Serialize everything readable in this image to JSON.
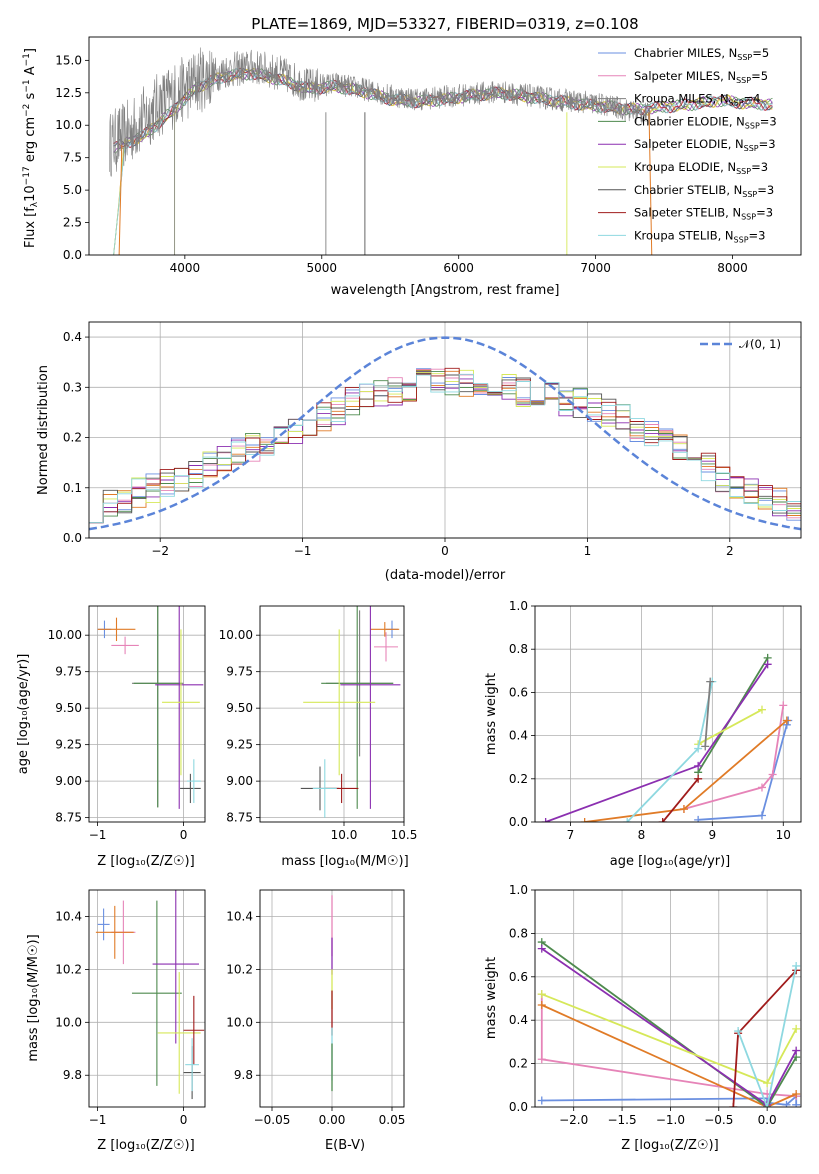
{
  "colors": {
    "Chabrier MILES": "#6a8fe0",
    "Salpeter MILES": "#e684b8",
    "Kroupa MILES": "#7f7f7f",
    "Chabrier ELODIE": "#4e8a4e",
    "Salpeter ELODIE": "#8b2fb0",
    "Kroupa ELODIE": "#d6e859",
    "Chabrier STELIB": "#555555",
    "Salpeter STELIB": "#a01b1b",
    "Kroupa STELIB": "#8ed8e0",
    "orange": "#e07b27",
    "normal_curve": "#5b84d8"
  },
  "chart_data": [
    {
      "id": "spectrum",
      "type": "line",
      "title": "PLATE=1869, MJD=53327, FIBERID=0319, z=0.108",
      "xlabel": "wavelength [Angstrom, rest frame]",
      "ylabel": "Flux [f",
      "ylabel_sub": "λ",
      "ylabel_rest": "10",
      "ylabel_sup1": "−17",
      "ylabel_unit": " erg cm",
      "ylabel_sup2": "−2",
      "ylabel_s": " s",
      "ylabel_sup3": "−1",
      "ylabel_A": " A",
      "ylabel_sup4": "−1",
      "ylabel_end": "]",
      "xlim": [
        3300,
        8500
      ],
      "ylim": [
        0,
        16.8
      ],
      "xticks": [
        4000,
        5000,
        6000,
        7000,
        8000
      ],
      "yticks": [
        0.0,
        2.5,
        5.0,
        7.5,
        10.0,
        12.5,
        15.0
      ],
      "legend": [
        {
          "name": "Chabrier MILES",
          "nssp": "5"
        },
        {
          "name": "Salpeter MILES",
          "nssp": "5"
        },
        {
          "name": "Kroupa MILES",
          "nssp": "4"
        },
        {
          "name": "Chabrier ELODIE",
          "nssp": "3"
        },
        {
          "name": "Salpeter ELODIE",
          "nssp": "3"
        },
        {
          "name": "Kroupa ELODIE",
          "nssp": "3"
        },
        {
          "name": "Chabrier STELIB",
          "nssp": "3"
        },
        {
          "name": "Salpeter STELIB",
          "nssp": "3"
        },
        {
          "name": "Kroupa STELIB",
          "nssp": "3"
        }
      ],
      "legend_label_prefix": ", N",
      "legend_label_sub": "SSP",
      "legend_label_eq": "=",
      "data_envelope": {
        "x": [
          3450,
          3600,
          3800,
          3950,
          4100,
          4300,
          4500,
          4700,
          4900,
          5100,
          5300,
          5500,
          5700,
          5900,
          6100,
          6300,
          6500,
          6700,
          6900,
          7100,
          7300,
          7400
        ],
        "y": [
          8.5,
          9.5,
          11.5,
          12.5,
          13.5,
          14.2,
          14.5,
          14.0,
          13.0,
          13.2,
          12.8,
          12.3,
          12.0,
          12.2,
          12.4,
          12.6,
          12.3,
          12.0,
          11.8,
          11.5,
          11.0,
          10.8
        ]
      },
      "model_envelope": {
        "x": [
          3500,
          3700,
          3900,
          4100,
          4300,
          4500,
          4700,
          4900,
          5100,
          5300,
          5500,
          5700,
          5900,
          6100,
          6300,
          6500,
          6700,
          6900,
          7100,
          7300,
          7500,
          7700,
          7900,
          8100,
          8300
        ],
        "y": [
          8.3,
          9.2,
          11.0,
          13.0,
          13.8,
          14.0,
          13.5,
          12.8,
          13.0,
          12.6,
          12.0,
          11.8,
          12.0,
          12.3,
          12.5,
          12.2,
          11.9,
          11.6,
          11.4,
          11.2,
          11.4,
          11.6,
          11.9,
          11.7,
          11.6
        ]
      }
    },
    {
      "id": "residuals",
      "type": "histogram",
      "xlabel": "(data-model)/error",
      "ylabel": "Normed distribution",
      "xlim": [
        -2.5,
        2.5
      ],
      "ylim": [
        0,
        0.43
      ],
      "xticks": [
        -2,
        -1,
        0,
        1,
        2
      ],
      "yticks": [
        0.0,
        0.1,
        0.2,
        0.3,
        0.4
      ],
      "legend_curve": "𝒩(0, 1)",
      "normal": {
        "mean": 0,
        "sigma": 1
      },
      "bin_edges_start": -2.5,
      "bin_width": 0.1,
      "centerline": [
        0.06,
        0.07,
        0.08,
        0.09,
        0.1,
        0.11,
        0.12,
        0.13,
        0.15,
        0.16,
        0.17,
        0.18,
        0.19,
        0.2,
        0.21,
        0.23,
        0.24,
        0.25,
        0.27,
        0.28,
        0.29,
        0.29,
        0.3,
        0.31,
        0.31,
        0.31,
        0.31,
        0.31,
        0.3,
        0.3,
        0.29,
        0.29,
        0.28,
        0.27,
        0.27,
        0.26,
        0.25,
        0.24,
        0.22,
        0.21,
        0.19,
        0.18,
        0.16,
        0.14,
        0.12,
        0.1,
        0.09,
        0.08,
        0.07,
        0.06
      ]
    },
    {
      "id": "age_vs_Z",
      "type": "errorbar",
      "xlabel": "Z [log₁₀(Z/Z☉)]",
      "ylabel": "age  [log₁₀(age/yr)]",
      "xlim": [
        -1.1,
        0.25
      ],
      "ylim": [
        8.72,
        10.2
      ],
      "xticks": [
        -1,
        0
      ],
      "yticks": [
        8.75,
        9.0,
        9.25,
        9.5,
        9.75,
        10.0
      ],
      "points": [
        {
          "c": "Chabrier MILES",
          "x": -0.92,
          "y": 10.04,
          "xerr": 0.08,
          "yerr": 0.06
        },
        {
          "c": "Salpeter MILES",
          "x": -0.68,
          "y": 9.93,
          "xerr": 0.16,
          "yerr": 0.06
        },
        {
          "c": "orange",
          "x": -0.78,
          "y": 10.04,
          "xerr": 0.22,
          "yerr": 0.08
        },
        {
          "c": "Kroupa MILES",
          "x": -0.3,
          "y": 9.67,
          "xerr": 0.3,
          "yerr": 0.85
        },
        {
          "c": "Chabrier ELODIE",
          "x": -0.3,
          "y": 9.67,
          "xerr": 0.28,
          "yerr": 0.85
        },
        {
          "c": "Salpeter ELODIE",
          "x": -0.05,
          "y": 9.66,
          "xerr": 0.28,
          "yerr": 0.85
        },
        {
          "c": "Kroupa ELODIE",
          "x": -0.03,
          "y": 9.54,
          "xerr": 0.22,
          "yerr": 0.5
        },
        {
          "c": "Chabrier STELIB",
          "x": 0.08,
          "y": 8.95,
          "xerr": 0.12,
          "yerr": 0.1
        },
        {
          "c": "Kroupa STELIB",
          "x": 0.12,
          "y": 9.0,
          "xerr": 0.08,
          "yerr": 0.15
        }
      ]
    },
    {
      "id": "age_vs_mass",
      "type": "errorbar",
      "xlabel": "mass [log₁₀(M/M☉)]",
      "ylabel": "",
      "xlim": [
        9.3,
        10.5
      ],
      "ylim": [
        8.72,
        10.2
      ],
      "xticks": [
        10.0,
        10.5
      ],
      "yticks": [
        8.75,
        9.0,
        9.25,
        9.5,
        9.75,
        10.0
      ],
      "points": [
        {
          "c": "Chabrier MILES",
          "x": 10.4,
          "y": 10.04,
          "xerr": 0.05,
          "yerr": 0.06
        },
        {
          "c": "Salpeter MILES",
          "x": 10.35,
          "y": 9.92,
          "xerr": 0.1,
          "yerr": 0.1
        },
        {
          "c": "orange",
          "x": 10.34,
          "y": 10.04,
          "xerr": 0.12,
          "yerr": 0.05
        },
        {
          "c": "Kroupa MILES",
          "x": 10.13,
          "y": 9.67,
          "xerr": 0.28,
          "yerr": 0.5
        },
        {
          "c": "Chabrier ELODIE",
          "x": 10.11,
          "y": 9.67,
          "xerr": 0.3,
          "yerr": 0.86
        },
        {
          "c": "Salpeter ELODIE",
          "x": 10.22,
          "y": 9.66,
          "xerr": 0.25,
          "yerr": 0.85
        },
        {
          "c": "Kroupa ELODIE",
          "x": 9.96,
          "y": 9.54,
          "xerr": 0.3,
          "yerr": 0.5
        },
        {
          "c": "Chabrier STELIB",
          "x": 9.8,
          "y": 8.95,
          "xerr": 0.16,
          "yerr": 0.15
        },
        {
          "c": "Salpeter STELIB",
          "x": 9.98,
          "y": 8.95,
          "xerr": 0.14,
          "yerr": 0.1
        },
        {
          "c": "Kroupa STELIB",
          "x": 9.84,
          "y": 8.95,
          "xerr": 0.1,
          "yerr": 0.2
        }
      ]
    },
    {
      "id": "mw_vs_age",
      "type": "line",
      "xlabel": "age  [log₁₀(age/yr)]",
      "ylabel": "mass weight",
      "xlim": [
        6.5,
        10.25
      ],
      "ylim": [
        0,
        1.0
      ],
      "xticks": [
        7,
        8,
        9,
        10
      ],
      "yticks": [
        0.0,
        0.2,
        0.4,
        0.6,
        0.8,
        1.0
      ],
      "series": [
        {
          "c": "Chabrier MILES",
          "x": [
            8.8,
            9.7,
            10.05,
            10.07
          ],
          "y": [
            0.01,
            0.03,
            0.45,
            0.47
          ]
        },
        {
          "c": "Salpeter MILES",
          "x": [
            8.6,
            9.7,
            9.85,
            10.0
          ],
          "y": [
            0.06,
            0.16,
            0.22,
            0.54
          ]
        },
        {
          "c": "orange",
          "x": [
            7.2,
            8.6,
            10.05
          ],
          "y": [
            0.0,
            0.06,
            0.47
          ]
        },
        {
          "c": "Chabrier ELODIE",
          "x": [
            8.8,
            9.78
          ],
          "y": [
            0.23,
            0.76
          ]
        },
        {
          "c": "Salpeter ELODIE",
          "x": [
            6.65,
            8.8,
            9.78
          ],
          "y": [
            0.0,
            0.26,
            0.73
          ]
        },
        {
          "c": "Kroupa ELODIE",
          "x": [
            8.8,
            9.7
          ],
          "y": [
            0.36,
            0.52
          ]
        },
        {
          "c": "Salpeter STELIB",
          "x": [
            8.3,
            8.8
          ],
          "y": [
            0.0,
            0.2
          ]
        },
        {
          "c": "Kroupa STELIB",
          "x": [
            7.8,
            8.8,
            9.0
          ],
          "y": [
            0.0,
            0.34,
            0.65
          ]
        },
        {
          "c": "Kroupa MILES",
          "x": [
            8.9,
            8.97
          ],
          "y": [
            0.35,
            0.65
          ]
        }
      ]
    },
    {
      "id": "mass_vs_Z",
      "type": "errorbar",
      "xlabel": "Z [log₁₀(Z/Z☉)]",
      "ylabel": "mass [log₁₀(M/M☉)]",
      "xlim": [
        -1.1,
        0.25
      ],
      "ylim": [
        9.68,
        10.5
      ],
      "xticks": [
        -1,
        0
      ],
      "yticks": [
        9.8,
        10.0,
        10.2,
        10.4
      ],
      "points": [
        {
          "c": "Chabrier MILES",
          "x": -0.93,
          "y": 10.37,
          "xerr": 0.07,
          "yerr": 0.06
        },
        {
          "c": "Salpeter MILES",
          "x": -0.7,
          "y": 10.34,
          "xerr": 0.14,
          "yerr": 0.12
        },
        {
          "c": "orange",
          "x": -0.8,
          "y": 10.34,
          "xerr": 0.22,
          "yerr": 0.1
        },
        {
          "c": "Chabrier ELODIE",
          "x": -0.31,
          "y": 10.11,
          "xerr": 0.29,
          "yerr": 0.35
        },
        {
          "c": "Salpeter ELODIE",
          "x": -0.09,
          "y": 10.22,
          "xerr": 0.27,
          "yerr": 0.3
        },
        {
          "c": "Kroupa ELODIE",
          "x": -0.05,
          "y": 9.96,
          "xerr": 0.25,
          "yerr": 0.23
        },
        {
          "c": "Chabrier STELIB",
          "x": 0.1,
          "y": 9.81,
          "xerr": 0.1,
          "yerr": 0.1
        },
        {
          "c": "Salpeter STELIB",
          "x": 0.12,
          "y": 9.97,
          "xerr": 0.12,
          "yerr": 0.13
        },
        {
          "c": "Kroupa STELIB",
          "x": 0.1,
          "y": 9.84,
          "xerr": 0.08,
          "yerr": 0.1
        }
      ]
    },
    {
      "id": "mass_vs_ebv",
      "type": "errorbar",
      "xlabel": "E(B-V)",
      "ylabel": "",
      "xlim": [
        -0.06,
        0.06
      ],
      "ylim": [
        9.68,
        10.5
      ],
      "xticks": [
        -0.05,
        0.0,
        0.05
      ],
      "yticks": [
        9.8,
        10.0,
        10.2,
        10.4
      ],
      "segments": [
        {
          "c": "Salpeter MILES",
          "y0": 10.25,
          "y1": 10.48
        },
        {
          "c": "Salpeter ELODIE",
          "y0": 10.18,
          "y1": 10.32
        },
        {
          "c": "Kroupa ELODIE",
          "y0": 10.05,
          "y1": 10.2
        },
        {
          "c": "Salpeter STELIB",
          "y0": 9.95,
          "y1": 10.12
        },
        {
          "c": "Kroupa STELIB",
          "y0": 9.78,
          "y1": 9.98
        },
        {
          "c": "Chabrier ELODIE",
          "y0": 9.74,
          "y1": 9.92
        }
      ]
    },
    {
      "id": "mw_vs_Z",
      "type": "line",
      "xlabel": "Z [log₁₀(Z/Z☉)]",
      "ylabel": "mass weight",
      "xlim": [
        -2.4,
        0.35
      ],
      "ylim": [
        0,
        1.0
      ],
      "xticks": [
        -2.0,
        -1.5,
        -1.0,
        -0.5,
        0.0
      ],
      "yticks": [
        0.0,
        0.2,
        0.4,
        0.6,
        0.8,
        1.0
      ],
      "series": [
        {
          "c": "Chabrier MILES",
          "x": [
            -2.33,
            0.0,
            0.0,
            0.2,
            0.3,
            0.3
          ],
          "y": [
            0.03,
            0.04,
            0.02,
            0.01,
            0.05,
            0.01
          ]
        },
        {
          "c": "Salpeter MILES",
          "x": [
            -2.33,
            -2.33,
            0.0,
            0.3
          ],
          "y": [
            0.52,
            0.22,
            0.06,
            0.05
          ]
        },
        {
          "c": "orange",
          "x": [
            -2.33,
            0.0,
            0.3
          ],
          "y": [
            0.47,
            0.0,
            0.06
          ]
        },
        {
          "c": "Chabrier ELODIE",
          "x": [
            -2.33,
            0.0,
            0.3
          ],
          "y": [
            0.76,
            0.0,
            0.23
          ]
        },
        {
          "c": "Salpeter ELODIE",
          "x": [
            -2.33,
            0.0,
            0.3
          ],
          "y": [
            0.73,
            0.01,
            0.26
          ]
        },
        {
          "c": "Kroupa ELODIE",
          "x": [
            -2.33,
            0.0,
            0.3
          ],
          "y": [
            0.52,
            0.11,
            0.36
          ]
        },
        {
          "c": "Salpeter STELIB",
          "x": [
            -0.35,
            -0.3,
            0.3
          ],
          "y": [
            0.0,
            0.34,
            0.63
          ]
        },
        {
          "c": "Kroupa STELIB",
          "x": [
            -0.3,
            0.0,
            0.3
          ],
          "y": [
            0.35,
            0.0,
            0.65
          ]
        }
      ]
    }
  ]
}
